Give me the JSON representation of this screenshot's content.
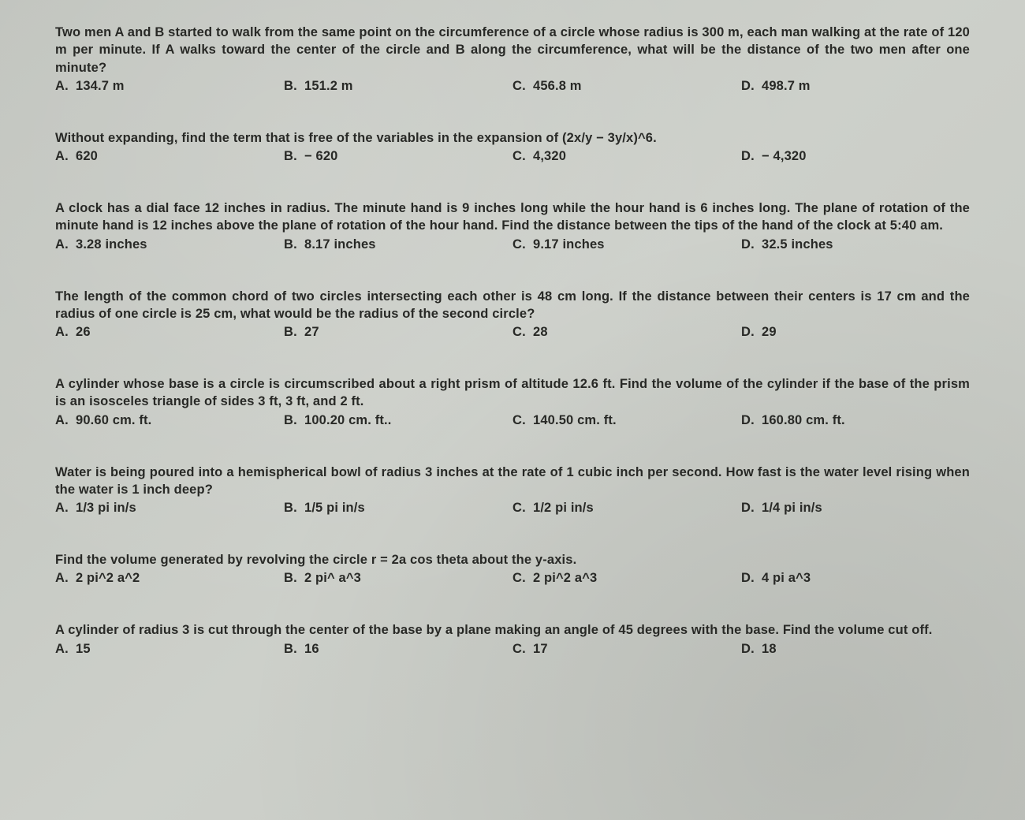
{
  "page": {
    "background_color": "#c8cbc6",
    "text_color": "#282926",
    "font_family": "Verdana",
    "font_size_pt": 12,
    "font_weight": "600"
  },
  "questions": [
    {
      "text": "Two men A and B started to walk from the same point on the circumference of a circle whose radius is 300 m, each man walking at the rate of 120 m per minute. If A walks toward the center of the circle and B along the circumference, what will be the distance of the two men after one minute?",
      "options": {
        "A": "134.7 m",
        "B": "151.2 m",
        "C": "456.8 m",
        "D": "498.7 m"
      }
    },
    {
      "text": "Without expanding, find the term that is free of the variables in the expansion of (2x/y − 3y/x)^6.",
      "options": {
        "A": "620",
        "B": "− 620",
        "C": "4,320",
        "D": "− 4,320"
      }
    },
    {
      "text": "A clock has a dial face 12 inches in radius. The minute hand is 9 inches long while the hour hand is 6 inches long. The plane of rotation of the minute hand is 12 inches above the plane of rotation of the hour hand. Find the distance between the tips of the hand of the clock at 5:40 am.",
      "options": {
        "A": "3.28 inches",
        "B": "8.17 inches",
        "C": "9.17 inches",
        "D": "32.5 inches"
      }
    },
    {
      "text": "The length of the common chord of two circles intersecting each other is 48 cm long. If the distance between their centers is 17 cm and the radius of one circle is 25 cm, what would be the radius of the second circle?",
      "options": {
        "A": "26",
        "B": "27",
        "C": "28",
        "D": "29"
      }
    },
    {
      "text": "A cylinder whose base is a circle is circumscribed about a right prism of altitude 12.6 ft. Find the volume of the cylinder if the base of the prism is an isosceles triangle of sides 3 ft, 3 ft, and 2 ft.",
      "options": {
        "A": "90.60 cm. ft.",
        "B": "100.20 cm. ft..",
        "C": "140.50 cm. ft.",
        "D": "160.80 cm. ft."
      }
    },
    {
      "text": "Water is being poured into a hemispherical bowl of radius 3 inches at the rate of 1 cubic inch per second. How fast is the water level rising when the water is 1 inch deep?",
      "options": {
        "A": "1/3 pi in/s",
        "B": "1/5 pi in/s",
        "C": "1/2 pi in/s",
        "D": "1/4 pi in/s"
      }
    },
    {
      "text": "Find the volume generated by revolving the circle r = 2a cos theta about the y-axis.",
      "options": {
        "A": "2 pi^2 a^2",
        "B": "2 pi^ a^3",
        "C": "2 pi^2 a^3",
        "D": "4 pi a^3"
      }
    },
    {
      "text": "A cylinder of radius 3 is cut through the center of the base by a plane making an angle of 45 degrees with the base. Find the volume cut off.",
      "options": {
        "A": "15",
        "B": "16",
        "C": "17",
        "D": "18"
      }
    }
  ]
}
